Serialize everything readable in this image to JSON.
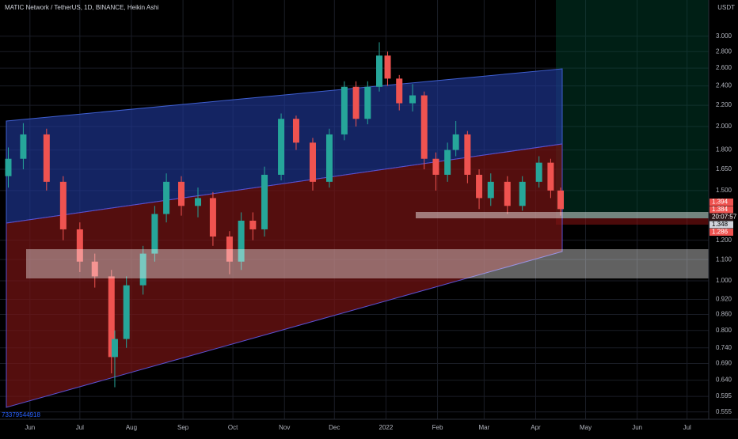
{
  "chart_data": {
    "type": "candlestick",
    "title": "MATIC Network / TetherUS, 1D, BINANCE, Heikin Ashi",
    "currency": "USDT",
    "volume_label": "73379544918",
    "log_scale": true,
    "up_color": "#26a69a",
    "down_color": "#ef5350",
    "x": [
      -13,
      -4,
      10,
      20,
      30,
      39,
      49,
      51,
      58,
      68,
      75,
      82,
      91,
      101,
      110,
      120,
      127,
      134,
      141,
      151,
      160,
      170,
      180,
      189,
      196,
      203,
      210,
      215,
      222,
      230,
      237,
      244,
      251,
      256,
      263,
      270,
      277,
      287,
      296,
      306,
      313,
      319
    ],
    "open": [
      1.6,
      1.73,
      1.93,
      1.56,
      1.26,
      1.09,
      1.02,
      0.71,
      0.77,
      0.98,
      1.13,
      1.35,
      1.56,
      1.4,
      1.45,
      1.22,
      1.09,
      1.31,
      1.26,
      1.61,
      2.07,
      1.86,
      1.56,
      1.93,
      2.39,
      2.07,
      2.39,
      2.75,
      2.48,
      2.22,
      2.3,
      1.73,
      1.61,
      1.8,
      1.93,
      1.61,
      1.45,
      1.56,
      1.4,
      1.56,
      1.7,
      1.5
    ],
    "high": [
      1.82,
      2.03,
      1.98,
      1.6,
      1.3,
      1.13,
      1.05,
      0.8,
      1.02,
      1.17,
      1.4,
      1.62,
      1.6,
      1.52,
      1.49,
      1.25,
      1.36,
      1.36,
      1.67,
      2.12,
      2.1,
      1.9,
      1.98,
      2.45,
      2.45,
      2.45,
      2.92,
      2.8,
      2.52,
      2.42,
      2.34,
      1.78,
      1.86,
      2.05,
      1.96,
      1.65,
      1.62,
      1.6,
      1.6,
      1.75,
      1.73,
      1.52
    ],
    "low": [
      1.52,
      1.65,
      1.5,
      1.2,
      1.04,
      0.97,
      0.66,
      0.62,
      0.74,
      0.94,
      1.09,
      1.3,
      1.34,
      1.33,
      1.17,
      1.03,
      1.05,
      1.2,
      1.22,
      1.57,
      1.8,
      1.5,
      1.52,
      1.88,
      2.0,
      2.02,
      2.34,
      2.4,
      2.15,
      2.14,
      1.65,
      1.5,
      1.56,
      1.75,
      1.55,
      1.38,
      1.4,
      1.35,
      1.37,
      1.52,
      1.45,
      1.34
    ],
    "close": [
      1.73,
      1.93,
      1.56,
      1.26,
      1.09,
      1.02,
      0.71,
      0.77,
      0.98,
      1.13,
      1.35,
      1.56,
      1.4,
      1.45,
      1.22,
      1.09,
      1.31,
      1.26,
      1.61,
      2.07,
      1.86,
      1.56,
      1.93,
      2.39,
      2.07,
      2.39,
      2.75,
      2.48,
      2.22,
      2.3,
      1.73,
      1.61,
      1.8,
      1.93,
      1.61,
      1.45,
      1.56,
      1.4,
      1.56,
      1.7,
      1.5,
      1.38
    ],
    "xlim": [
      -18,
      408
    ],
    "xticks": [
      {
        "value": 0,
        "label": "Jun"
      },
      {
        "value": 30,
        "label": "Jul"
      },
      {
        "value": 61,
        "label": "Aug"
      },
      {
        "value": 92,
        "label": "Sep"
      },
      {
        "value": 122,
        "label": "Oct"
      },
      {
        "value": 153,
        "label": "Nov"
      },
      {
        "value": 183,
        "label": "Dec"
      },
      {
        "value": 214,
        "label": "2022"
      },
      {
        "value": 245,
        "label": "Feb"
      },
      {
        "value": 273,
        "label": "Mar"
      },
      {
        "value": 304,
        "label": "Apr"
      },
      {
        "value": 334,
        "label": "May"
      },
      {
        "value": 365,
        "label": "Jun"
      },
      {
        "value": 395,
        "label": "Jul"
      }
    ],
    "ylim": [
      0.537,
      3.53
    ],
    "yticks": [
      {
        "value": 3,
        "label": "3.000"
      },
      {
        "value": 2.8,
        "label": "2.800"
      },
      {
        "value": 2.6,
        "label": "2.600"
      },
      {
        "value": 2.4,
        "label": "2.400"
      },
      {
        "value": 2.2,
        "label": "2.200"
      },
      {
        "value": 2,
        "label": "2.000"
      },
      {
        "value": 1.8,
        "label": "1.800"
      },
      {
        "value": 1.65,
        "label": "1.650"
      },
      {
        "value": 1.5,
        "label": "1.500"
      },
      {
        "value": 1.2,
        "label": "1.200"
      },
      {
        "value": 1.1,
        "label": "1.100"
      },
      {
        "value": 1,
        "label": "1.000"
      },
      {
        "value": 0.92,
        "label": "0.920"
      },
      {
        "value": 0.86,
        "label": "0.860"
      },
      {
        "value": 0.8,
        "label": "0.800"
      },
      {
        "value": 0.74,
        "label": "0.740"
      },
      {
        "value": 0.69,
        "label": "0.690"
      },
      {
        "value": 0.64,
        "label": "0.640"
      },
      {
        "value": 0.595,
        "label": "0.595"
      },
      {
        "value": 0.555,
        "label": "0.555"
      }
    ],
    "price_labels": [
      1.394,
      1.384,
      "20:07:57",
      1.348,
      1.286
    ],
    "grid": true
  }
}
